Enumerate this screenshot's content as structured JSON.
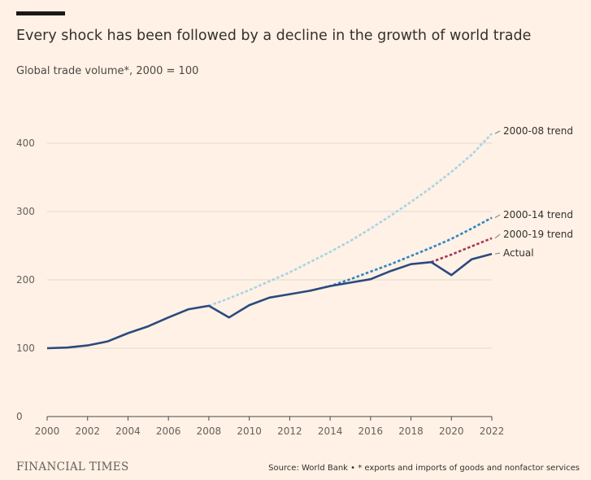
{
  "header": {
    "title": "Every shock has been followed by a decline in the growth of world trade",
    "subtitle": "Global trade volume*, 2000 = 100"
  },
  "footer": {
    "brand": "FINANCIAL TIMES",
    "source": "Source: World Bank • * exports and imports of goods and nonfactor services"
  },
  "colors": {
    "background": "#fff1e5",
    "actual": "#2b4a7e",
    "trend_2008": "#a5d4e8",
    "trend_2014": "#2d86c4",
    "trend_2019": "#a3365a",
    "grid": "#e3d6cb"
  },
  "chart_data": {
    "type": "line",
    "title": "Every shock has been followed by a decline in the growth of world trade",
    "subtitle": "Global trade volume*, 2000 = 100",
    "xlim": [
      2000,
      2022
    ],
    "ylim": [
      0,
      400
    ],
    "x_ticks": [
      2000,
      2002,
      2004,
      2006,
      2008,
      2010,
      2012,
      2014,
      2016,
      2018,
      2020,
      2022
    ],
    "y_ticks": [
      0,
      100,
      200,
      300,
      400
    ],
    "grid": true,
    "legend": "direct labels at right end of lines",
    "series": [
      {
        "name": "Actual",
        "style": "solid",
        "x": [
          2000,
          2001,
          2002,
          2003,
          2004,
          2005,
          2006,
          2007,
          2008,
          2009,
          2010,
          2011,
          2012,
          2013,
          2014,
          2015,
          2016,
          2017,
          2018,
          2019,
          2020,
          2021,
          2022
        ],
        "y": [
          100,
          101,
          104,
          110,
          122,
          132,
          145,
          157,
          162,
          145,
          163,
          174,
          179,
          184,
          191,
          196,
          201,
          213,
          223,
          226,
          207,
          230,
          238
        ]
      },
      {
        "name": "2000-08 trend",
        "style": "dotted",
        "x": [
          2008,
          2009,
          2010,
          2011,
          2012,
          2013,
          2014,
          2015,
          2016,
          2017,
          2018,
          2019,
          2020,
          2021,
          2022
        ],
        "y": [
          162,
          173,
          185,
          198,
          211,
          226,
          241,
          257,
          275,
          294,
          314,
          335,
          358,
          383,
          414
        ]
      },
      {
        "name": "2000-14 trend",
        "style": "dotted",
        "x": [
          2013,
          2014,
          2015,
          2016,
          2017,
          2018,
          2019,
          2020,
          2021,
          2022
        ],
        "y": [
          184,
          191,
          201,
          212,
          223,
          235,
          247,
          260,
          275,
          291
        ]
      },
      {
        "name": "2000-19 trend",
        "style": "dotted",
        "x": [
          2019,
          2020,
          2021,
          2022
        ],
        "y": [
          226,
          237,
          249,
          261
        ]
      }
    ]
  }
}
